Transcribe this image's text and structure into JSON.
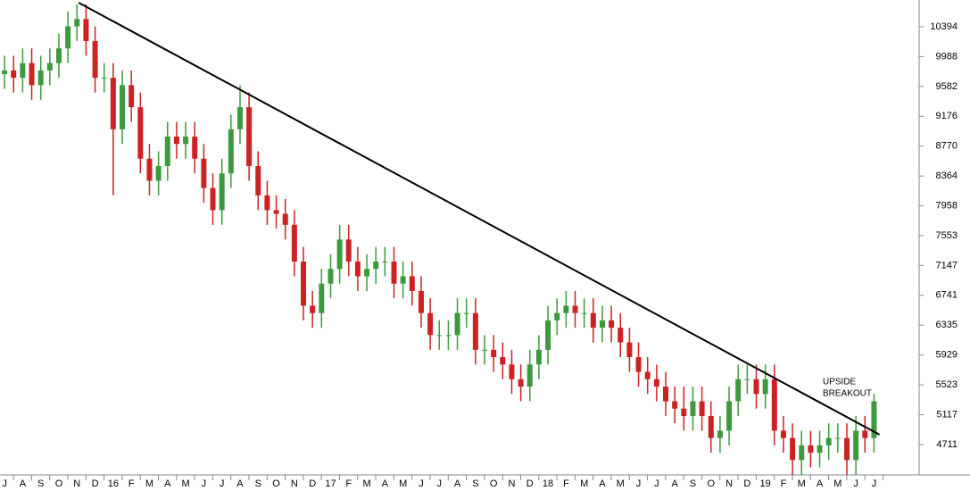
{
  "chart_data": {
    "type": "candlestick",
    "up_color": "#3c9a3c",
    "down_color": "#cc2222",
    "xlim": [
      -0.25,
      50.49
    ],
    "ylim": [
      4298,
      10758
    ],
    "yticks": [
      4711,
      5117,
      5523,
      5929,
      6335,
      6741,
      7147,
      7553,
      7958,
      8364,
      8770,
      9176,
      9582,
      9988,
      10394
    ],
    "xticks": [
      {
        "value": 0,
        "label": "J"
      },
      {
        "value": 1,
        "label": "A"
      },
      {
        "value": 2,
        "label": "S"
      },
      {
        "value": 3,
        "label": "O"
      },
      {
        "value": 4,
        "label": "N"
      },
      {
        "value": 5,
        "label": "D"
      },
      {
        "value": 6,
        "label": "16"
      },
      {
        "value": 7,
        "label": "F"
      },
      {
        "value": 8,
        "label": "M"
      },
      {
        "value": 9,
        "label": "A"
      },
      {
        "value": 10,
        "label": "M"
      },
      {
        "value": 11,
        "label": "J"
      },
      {
        "value": 12,
        "label": "J"
      },
      {
        "value": 13,
        "label": "A"
      },
      {
        "value": 14,
        "label": "S"
      },
      {
        "value": 15,
        "label": "O"
      },
      {
        "value": 16,
        "label": "N"
      },
      {
        "value": 17,
        "label": "D"
      },
      {
        "value": 18,
        "label": "17"
      },
      {
        "value": 19,
        "label": "F"
      },
      {
        "value": 20,
        "label": "M"
      },
      {
        "value": 21,
        "label": "A"
      },
      {
        "value": 22,
        "label": "M"
      },
      {
        "value": 23,
        "label": "J"
      },
      {
        "value": 24,
        "label": "J"
      },
      {
        "value": 25,
        "label": "A"
      },
      {
        "value": 26,
        "label": "S"
      },
      {
        "value": 27,
        "label": "O"
      },
      {
        "value": 28,
        "label": "N"
      },
      {
        "value": 29,
        "label": "D"
      },
      {
        "value": 30,
        "label": "18"
      },
      {
        "value": 31,
        "label": "F"
      },
      {
        "value": 32,
        "label": "M"
      },
      {
        "value": 33,
        "label": "A"
      },
      {
        "value": 34,
        "label": "M"
      },
      {
        "value": 35,
        "label": "J"
      },
      {
        "value": 36,
        "label": "J"
      },
      {
        "value": 37,
        "label": "A"
      },
      {
        "value": 38,
        "label": "S"
      },
      {
        "value": 39,
        "label": "O"
      },
      {
        "value": 40,
        "label": "N"
      },
      {
        "value": 41,
        "label": "D"
      },
      {
        "value": 42,
        "label": "19"
      },
      {
        "value": 43,
        "label": "F"
      },
      {
        "value": 44,
        "label": "M"
      },
      {
        "value": 45,
        "label": "A"
      },
      {
        "value": 46,
        "label": "M"
      },
      {
        "value": 47,
        "label": "J"
      },
      {
        "value": 48,
        "label": "J"
      }
    ],
    "x": [
      0,
      0.5,
      1,
      1.5,
      2,
      2.5,
      3,
      3.5,
      4,
      4.5,
      5,
      5.5,
      6,
      6.5,
      7,
      7.5,
      8,
      8.5,
      9,
      9.5,
      10,
      10.5,
      11,
      11.5,
      12,
      12.5,
      13,
      13.5,
      14,
      14.5,
      15,
      15.5,
      16,
      16.5,
      17,
      17.5,
      18,
      18.5,
      19,
      19.5,
      20,
      20.5,
      21,
      21.5,
      22,
      22.5,
      23,
      23.5,
      24,
      24.5,
      25,
      25.5,
      26,
      26.5,
      27,
      27.5,
      28,
      28.5,
      29,
      29.5,
      30,
      30.5,
      31,
      31.5,
      32,
      32.5,
      33,
      33.5,
      34,
      34.5,
      35,
      35.5,
      36,
      36.5,
      37,
      37.5,
      38,
      38.5,
      39,
      39.5,
      40,
      40.5,
      41,
      41.5,
      42,
      42.5,
      43,
      43.5,
      44,
      44.5,
      45,
      45.5,
      46,
      46.5,
      47,
      47.5,
      48
    ],
    "open": [
      9750,
      9800,
      9700,
      9900,
      9600,
      9800,
      9900,
      10100,
      10400,
      10500,
      10200,
      9700,
      9700,
      9000,
      9600,
      9300,
      8600,
      8300,
      8500,
      8900,
      8800,
      8900,
      8600,
      8200,
      7900,
      8400,
      9000,
      9300,
      8500,
      8100,
      7900,
      7850,
      7700,
      7200,
      6600,
      6500,
      6900,
      7100,
      7500,
      7200,
      7000,
      7100,
      7200,
      7200,
      6900,
      7000,
      6800,
      6500,
      6200,
      6200,
      6200,
      6500,
      6500,
      6000,
      6000,
      5900,
      5800,
      5600,
      5500,
      5800,
      6000,
      6400,
      6500,
      6600,
      6500,
      6500,
      6300,
      6400,
      6300,
      6100,
      5900,
      5700,
      5600,
      5500,
      5300,
      5200,
      5100,
      5300,
      5100,
      4800,
      4900,
      5300,
      5600,
      5600,
      5400,
      5600,
      4900,
      4800,
      4500,
      4700,
      4600,
      4700,
      4800,
      4800,
      4500,
      4900,
      4800
    ],
    "high": [
      10000,
      10000,
      10100,
      10100,
      10000,
      10100,
      10300,
      10600,
      10700,
      10700,
      10400,
      9900,
      9900,
      9800,
      9800,
      9500,
      8800,
      8700,
      9100,
      9100,
      9100,
      9100,
      8800,
      8400,
      8600,
      9200,
      9600,
      9500,
      8700,
      8300,
      8100,
      8050,
      7900,
      7400,
      6800,
      7100,
      7300,
      7700,
      7700,
      7400,
      7300,
      7400,
      7400,
      7400,
      7200,
      7200,
      7000,
      6700,
      6400,
      6400,
      6700,
      6700,
      6700,
      6200,
      6200,
      6100,
      6000,
      5800,
      6000,
      6200,
      6600,
      6700,
      6800,
      6800,
      6700,
      6700,
      6600,
      6600,
      6500,
      6300,
      6100,
      5900,
      5800,
      5700,
      5500,
      5500,
      5500,
      5500,
      5300,
      5100,
      5500,
      5800,
      5800,
      5800,
      5800,
      5800,
      5100,
      5000,
      4900,
      4900,
      4900,
      5000,
      5000,
      5000,
      5100,
      5100,
      5400
    ],
    "low": [
      9550,
      9500,
      9500,
      9400,
      9400,
      9600,
      9700,
      9900,
      10200,
      10000,
      9500,
      9500,
      8100,
      8800,
      9100,
      8400,
      8100,
      8100,
      8300,
      8600,
      8600,
      8400,
      8000,
      7700,
      7700,
      8200,
      8800,
      8300,
      7900,
      7700,
      7650,
      7500,
      7000,
      6400,
      6300,
      6300,
      6700,
      6900,
      7000,
      6800,
      6800,
      6900,
      7000,
      6700,
      6700,
      6600,
      6300,
      6000,
      6000,
      6000,
      6000,
      6300,
      5800,
      5800,
      5700,
      5600,
      5400,
      5300,
      5300,
      5600,
      5800,
      6200,
      6300,
      6300,
      6300,
      6100,
      6100,
      6100,
      5900,
      5700,
      5500,
      5400,
      5300,
      5100,
      5000,
      4900,
      4900,
      4900,
      4600,
      4600,
      4700,
      5100,
      5400,
      5200,
      5200,
      4700,
      4600,
      4300,
      4300,
      4400,
      4400,
      4500,
      4600,
      4300,
      4300,
      4600,
      4600
    ],
    "close": [
      9800,
      9700,
      9900,
      9600,
      9800,
      9900,
      10100,
      10400,
      10500,
      10200,
      9700,
      9700,
      9000,
      9600,
      9300,
      8600,
      8300,
      8500,
      8900,
      8800,
      8900,
      8600,
      8200,
      7900,
      8400,
      9000,
      9300,
      8500,
      8100,
      7900,
      7850,
      7700,
      7200,
      6600,
      6500,
      6900,
      7100,
      7500,
      7200,
      7000,
      7100,
      7200,
      7200,
      6900,
      7000,
      6800,
      6500,
      6200,
      6200,
      6200,
      6500,
      6500,
      6000,
      6000,
      5900,
      5800,
      5600,
      5500,
      5800,
      6000,
      6400,
      6500,
      6600,
      6500,
      6500,
      6300,
      6400,
      6300,
      6100,
      5900,
      5700,
      5600,
      5500,
      5300,
      5200,
      5100,
      5300,
      5100,
      4800,
      4900,
      5300,
      5600,
      5600,
      5400,
      5600,
      4900,
      4800,
      4500,
      4700,
      4600,
      4700,
      4800,
      4800,
      4500,
      4900,
      4800,
      5300
    ],
    "trendline": {
      "color": "#000000",
      "x": [
        4.09,
        48.3
      ],
      "y": [
        10722,
        4846
      ]
    },
    "annotation": {
      "lines": [
        "UPSIDE",
        "BREAKOUT"
      ],
      "color": "#1a1acc"
    }
  }
}
